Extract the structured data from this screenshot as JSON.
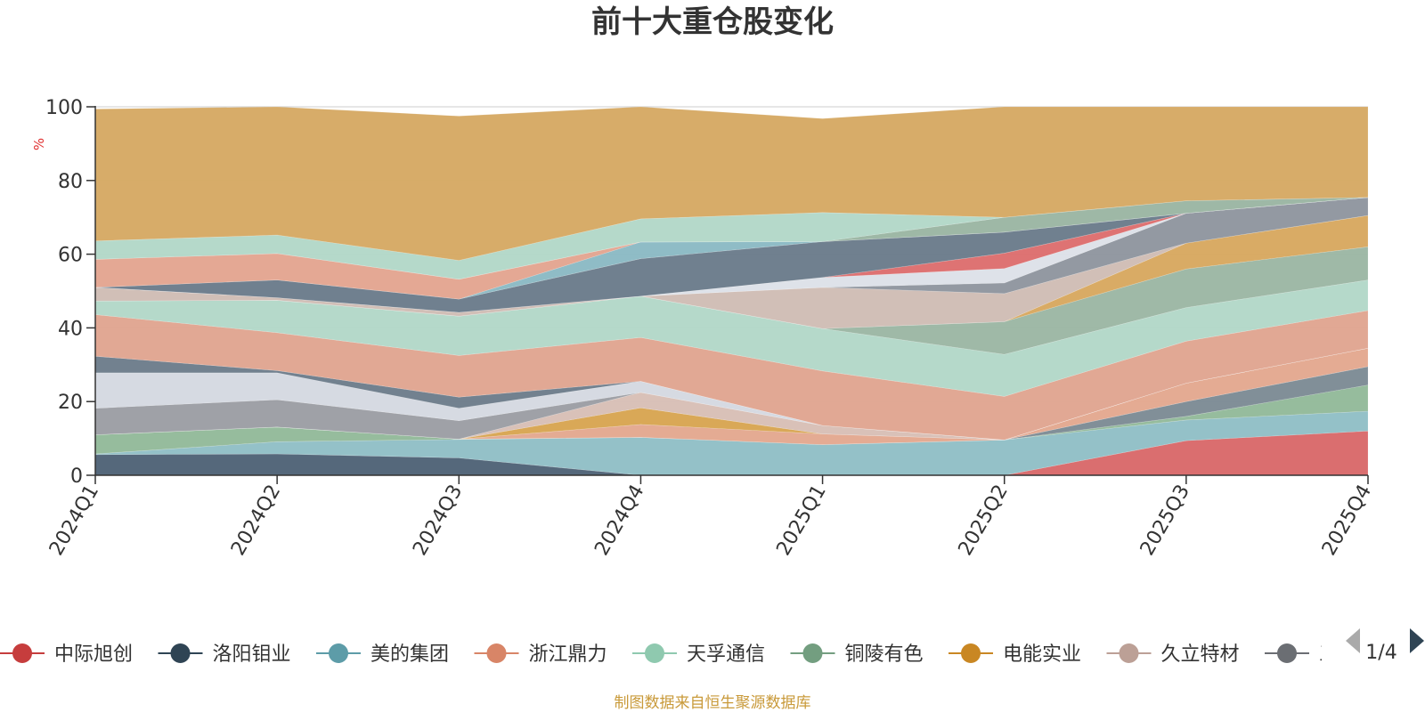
{
  "chart_data": {
    "type": "area",
    "stacked": true,
    "title": "前十大重仓股变化",
    "ylabel": "%",
    "ylim": [
      0,
      100
    ],
    "yticks": [
      0,
      20,
      40,
      60,
      80,
      100
    ],
    "categories": [
      "2024Q1",
      "2024Q2",
      "2024Q3",
      "2024Q4",
      "2025Q1",
      "2025Q2",
      "2025Q3",
      "2025Q4"
    ],
    "bands": [
      {
        "name": "band-1",
        "color": "#4f6377",
        "values": [
          [
            0,
            5.6
          ],
          [
            0,
            5.8
          ],
          [
            0,
            4.7
          ],
          [
            0,
            0
          ],
          [
            0,
            0
          ],
          [
            0,
            0
          ],
          [
            0,
            0
          ],
          [
            0,
            0
          ]
        ]
      },
      {
        "name": "band-2",
        "color": "#d9696a",
        "values": [
          [
            0,
            0
          ],
          [
            0,
            0
          ],
          [
            0,
            0
          ],
          [
            0,
            0
          ],
          [
            0,
            0
          ],
          [
            0,
            0
          ],
          [
            0,
            9.4
          ],
          [
            0,
            12
          ]
        ]
      },
      {
        "name": "band-3",
        "color": "#91bfc6",
        "values": [
          [
            5.6,
            5.8
          ],
          [
            5.8,
            9.1
          ],
          [
            4.7,
            9.7
          ],
          [
            0,
            10.3
          ],
          [
            0,
            8.3
          ],
          [
            0,
            9.6
          ],
          [
            9.4,
            15
          ],
          [
            12,
            17.4
          ]
        ]
      },
      {
        "name": "band-4",
        "color": "#93ba9a",
        "values": [
          [
            5.8,
            11
          ],
          [
            9.1,
            13.1
          ],
          [
            9.7,
            9.8
          ],
          [
            10.3,
            10.3
          ],
          [
            8.3,
            8.3
          ],
          [
            9.6,
            9.6
          ],
          [
            15,
            16
          ],
          [
            17.4,
            24.5
          ]
        ]
      },
      {
        "name": "band-5",
        "color": "#7d8b95",
        "values": [
          [
            11,
            11
          ],
          [
            13.1,
            13.1
          ],
          [
            9.8,
            9.8
          ],
          [
            10.3,
            10.3
          ],
          [
            8.3,
            8.3
          ],
          [
            9.6,
            9.6
          ],
          [
            16,
            20
          ],
          [
            24.5,
            29.5
          ]
        ]
      },
      {
        "name": "band-6",
        "color": "#e3a890",
        "values": [
          [
            11,
            11
          ],
          [
            13.1,
            13.1
          ],
          [
            9.8,
            9.8
          ],
          [
            10.3,
            13.8
          ],
          [
            8.3,
            11.2
          ],
          [
            9.6,
            9.6
          ],
          [
            20,
            25
          ],
          [
            29.5,
            34.5
          ]
        ]
      },
      {
        "name": "band-7",
        "color": "#d8a552",
        "values": [
          [
            11,
            11
          ],
          [
            13.1,
            13.1
          ],
          [
            9.8,
            9.8
          ],
          [
            13.8,
            18.3
          ],
          [
            11.2,
            11.2
          ],
          [
            9.6,
            9.6
          ],
          [
            25,
            25
          ],
          [
            34.5,
            34.5
          ]
        ]
      },
      {
        "name": "band-8",
        "color": "#d8bfb6",
        "values": [
          [
            11,
            11
          ],
          [
            13.1,
            13.1
          ],
          [
            9.8,
            9.8
          ],
          [
            18.3,
            22.5
          ],
          [
            11.2,
            13.5
          ],
          [
            9.6,
            9.6
          ],
          [
            25,
            25
          ],
          [
            34.5,
            34.5
          ]
        ]
      },
      {
        "name": "band-9",
        "color": "#9c9ea4",
        "values": [
          [
            11,
            18.2
          ],
          [
            13.1,
            20.5
          ],
          [
            9.8,
            14.8
          ],
          [
            22.5,
            22.5
          ],
          [
            13.5,
            13.5
          ],
          [
            9.6,
            9.6
          ],
          [
            25,
            25
          ],
          [
            34.5,
            34.5
          ]
        ]
      },
      {
        "name": "band-10",
        "color": "#d5d9e1",
        "values": [
          [
            18.2,
            27.8
          ],
          [
            20.5,
            27.8
          ],
          [
            14.8,
            18.2
          ],
          [
            22.5,
            25.5
          ],
          [
            13.5,
            13.5
          ],
          [
            9.6,
            9.6
          ],
          [
            25,
            25
          ],
          [
            34.5,
            34.5
          ]
        ]
      },
      {
        "name": "band-11",
        "color": "#6d7d8b",
        "values": [
          [
            27.8,
            32.3
          ],
          [
            27.8,
            28.4
          ],
          [
            18.2,
            21.2
          ],
          [
            25.5,
            25.5
          ],
          [
            13.5,
            13.5
          ],
          [
            9.6,
            9.6
          ],
          [
            25,
            25
          ],
          [
            34.5,
            34.5
          ]
        ]
      },
      {
        "name": "band-12",
        "color": "#e0a591",
        "values": [
          [
            32.3,
            43.6
          ],
          [
            28.4,
            38.7
          ],
          [
            21.2,
            32.5
          ],
          [
            25.5,
            37.4
          ],
          [
            13.5,
            28.3
          ],
          [
            9.6,
            21.4
          ],
          [
            25,
            36.4
          ],
          [
            34.5,
            44.7
          ]
        ]
      },
      {
        "name": "band-13",
        "color": "#b3d8c8",
        "values": [
          [
            43.6,
            47.3
          ],
          [
            38.7,
            47.5
          ],
          [
            32.5,
            43.2
          ],
          [
            37.4,
            48.6
          ],
          [
            28.3,
            39.8
          ],
          [
            21.4,
            32.8
          ],
          [
            36.4,
            45.5
          ],
          [
            44.7,
            53
          ]
        ]
      },
      {
        "name": "band-14",
        "color": "#9cb7a4",
        "values": [
          [
            47.3,
            47.3
          ],
          [
            47.5,
            47.5
          ],
          [
            43.2,
            43.2
          ],
          [
            48.6,
            48.6
          ],
          [
            39.8,
            39.8
          ],
          [
            32.8,
            41.7
          ],
          [
            45.5,
            56
          ],
          [
            53,
            62
          ]
        ]
      },
      {
        "name": "band-15",
        "color": "#d8a860",
        "values": [
          [
            47.3,
            47.3
          ],
          [
            47.5,
            47.5
          ],
          [
            43.2,
            43.2
          ],
          [
            48.6,
            48.6
          ],
          [
            39.8,
            39.8
          ],
          [
            41.7,
            41.7
          ],
          [
            56,
            63
          ],
          [
            62,
            70.5
          ]
        ]
      },
      {
        "name": "band-16",
        "color": "#d0bdb5",
        "values": [
          [
            47.3,
            51
          ],
          [
            47.5,
            48.2
          ],
          [
            43.2,
            44.2
          ],
          [
            48.6,
            48.6
          ],
          [
            39.8,
            51
          ],
          [
            41.7,
            49.3
          ],
          [
            63,
            63
          ],
          [
            70.5,
            70.5
          ]
        ]
      },
      {
        "name": "band-17",
        "color": "#8f969f",
        "values": [
          [
            51,
            51
          ],
          [
            48.2,
            48.2
          ],
          [
            44.2,
            44.2
          ],
          [
            48.6,
            48.6
          ],
          [
            51,
            51
          ],
          [
            49.3,
            52.2
          ],
          [
            63,
            71.1
          ],
          [
            70.5,
            75.4
          ]
        ]
      },
      {
        "name": "band-18",
        "color": "#dde1e8",
        "values": [
          [
            51,
            51
          ],
          [
            48.2,
            48.2
          ],
          [
            44.2,
            44.2
          ],
          [
            48.6,
            48.6
          ],
          [
            51,
            53.7
          ],
          [
            52.2,
            56.1
          ],
          [
            71.1,
            71.1
          ],
          [
            75.4,
            75.4
          ]
        ]
      },
      {
        "name": "band-19",
        "color": "#dd6e6e",
        "values": [
          [
            51,
            51
          ],
          [
            48.2,
            48.2
          ],
          [
            44.2,
            44.2
          ],
          [
            48.6,
            48.6
          ],
          [
            53.7,
            53.7
          ],
          [
            56.1,
            60.3
          ],
          [
            71.1,
            71.1
          ],
          [
            75.4,
            75.4
          ]
        ]
      },
      {
        "name": "band-20",
        "color": "#6b7c8b",
        "values": [
          [
            51,
            51
          ],
          [
            48.2,
            53
          ],
          [
            44.2,
            47.8
          ],
          [
            48.6,
            58.8
          ],
          [
            53.7,
            63.4
          ],
          [
            60.3,
            66
          ],
          [
            71.1,
            71.1
          ],
          [
            75.4,
            75.4
          ]
        ]
      },
      {
        "name": "band-21",
        "color": "#8bbac4",
        "values": [
          [
            51,
            51
          ],
          [
            53,
            53
          ],
          [
            47.8,
            47.8
          ],
          [
            58.8,
            63.3
          ],
          [
            63.4,
            63.4
          ],
          [
            66,
            66
          ],
          [
            71.1,
            71.1
          ],
          [
            75.4,
            75.4
          ]
        ]
      },
      {
        "name": "band-22",
        "color": "#e3a591",
        "values": [
          [
            51,
            58.6
          ],
          [
            53,
            60.2
          ],
          [
            47.8,
            53.2
          ],
          [
            63.3,
            63.3
          ],
          [
            63.4,
            63.4
          ],
          [
            66,
            66
          ],
          [
            71.1,
            71.1
          ],
          [
            75.4,
            75.4
          ]
        ]
      },
      {
        "name": "band-23",
        "color": "#9bb6a3",
        "values": [
          [
            58.6,
            58.6
          ],
          [
            60.2,
            60.2
          ],
          [
            53.2,
            53.2
          ],
          [
            63.3,
            63.3
          ],
          [
            63.4,
            63.4
          ],
          [
            66,
            70
          ],
          [
            71.1,
            74.5
          ],
          [
            75.4,
            75.4
          ]
        ]
      },
      {
        "name": "band-24",
        "color": "#b3d8c8",
        "values": [
          [
            58.6,
            63.6
          ],
          [
            60.2,
            65.2
          ],
          [
            53.2,
            58.3
          ],
          [
            63.3,
            69.6
          ],
          [
            63.4,
            71.3
          ],
          [
            70,
            70
          ],
          [
            74.5,
            74.5
          ],
          [
            75.4,
            75.4
          ]
        ]
      },
      {
        "name": "band-25",
        "color": "#d6a964",
        "values": [
          [
            63.6,
            99.4
          ],
          [
            65.2,
            100
          ],
          [
            58.3,
            97.5
          ],
          [
            69.6,
            100
          ],
          [
            71.3,
            96.8
          ],
          [
            70,
            100
          ],
          [
            74.5,
            100
          ],
          [
            75.4,
            100
          ]
        ]
      }
    ]
  },
  "legend": {
    "items": [
      {
        "label": "中际旭创",
        "color": "#c63d3d"
      },
      {
        "label": "洛阳钼业",
        "color": "#2f4454"
      },
      {
        "label": "美的集团",
        "color": "#5d9ca8"
      },
      {
        "label": "浙江鼎力",
        "color": "#d88567"
      },
      {
        "label": "天孚通信",
        "color": "#8fc9af"
      },
      {
        "label": "铜陵有色",
        "color": "#739e80"
      },
      {
        "label": "电能实业",
        "color": "#c98723"
      },
      {
        "label": "久立特材",
        "color": "#bca096"
      },
      {
        "label": "三",
        "color": "#6b6e73"
      }
    ],
    "page": "1/4"
  },
  "source": "制图数据来自恒生聚源数据库",
  "colors": {
    "source": "#c99a3a",
    "ylabel": "#e03030",
    "axis": "#333333",
    "grid": "#cccccc",
    "pager_inactive": "#aaaaaa",
    "pager_active": "#2f4454"
  }
}
